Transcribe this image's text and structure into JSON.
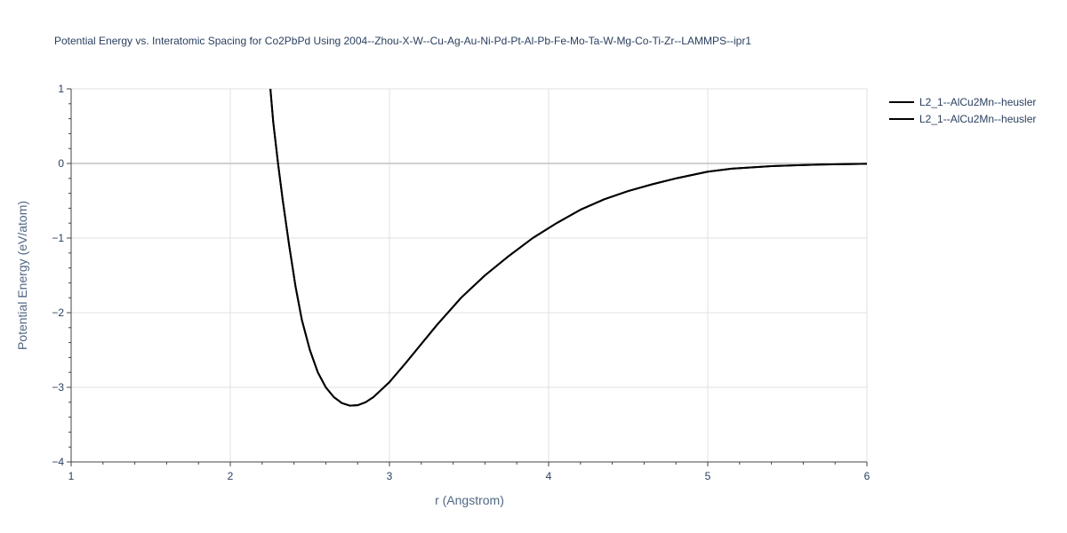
{
  "chart_data": {
    "type": "line",
    "title": "Potential Energy vs. Interatomic Spacing for Co2PbPd Using 2004--Zhou-X-W--Cu-Ag-Au-Ni-Pd-Pt-Al-Pb-Fe-Mo-Ta-W-Mg-Co-Ti-Zr--LAMMPS--ipr1",
    "xlabel": "r (Angstrom)",
    "ylabel": "Potential Energy (eV/atom)",
    "xlim": [
      1,
      6
    ],
    "ylim": [
      -4,
      1
    ],
    "x_ticks": [
      1,
      2,
      3,
      4,
      5,
      6
    ],
    "x_tick_labels": [
      "1",
      "2",
      "3",
      "4",
      "5",
      "6"
    ],
    "y_ticks": [
      1,
      0,
      -1,
      -2,
      -3,
      -4
    ],
    "y_tick_labels": [
      "1",
      "0",
      "−1",
      "−2",
      "−3",
      "−4"
    ],
    "grid": true,
    "legend_position": "top-right",
    "series": [
      {
        "name": "L2_1--AlCu2Mn--heusler",
        "color": "#000000",
        "x": [
          2.25,
          2.27,
          2.3,
          2.33,
          2.37,
          2.41,
          2.45,
          2.5,
          2.55,
          2.6,
          2.65,
          2.7,
          2.75,
          2.8,
          2.85,
          2.9,
          3.0,
          3.1,
          3.2,
          3.3,
          3.45,
          3.6,
          3.75,
          3.9,
          4.05,
          4.2,
          4.35,
          4.5,
          4.65,
          4.8,
          5.0,
          5.15,
          5.4,
          5.7,
          6.0
        ],
        "y": [
          1.05,
          0.55,
          0.0,
          -0.5,
          -1.1,
          -1.65,
          -2.1,
          -2.5,
          -2.8,
          -3.0,
          -3.13,
          -3.21,
          -3.245,
          -3.24,
          -3.2,
          -3.13,
          -2.93,
          -2.68,
          -2.42,
          -2.16,
          -1.8,
          -1.5,
          -1.24,
          -1.0,
          -0.8,
          -0.62,
          -0.48,
          -0.37,
          -0.28,
          -0.2,
          -0.11,
          -0.07,
          -0.035,
          -0.015,
          -0.005
        ]
      },
      {
        "name": "L2_1--AlCu2Mn--heusler",
        "color": "#000000",
        "x": [
          2.25,
          2.27,
          2.3,
          2.33,
          2.37,
          2.41,
          2.45,
          2.5,
          2.55,
          2.6,
          2.65,
          2.7,
          2.75,
          2.8,
          2.85,
          2.9,
          3.0,
          3.1,
          3.2,
          3.3,
          3.45,
          3.6,
          3.75,
          3.9,
          4.05,
          4.2,
          4.35,
          4.5,
          4.65,
          4.8,
          5.0,
          5.15,
          5.4,
          5.7,
          6.0
        ],
        "y": [
          1.05,
          0.55,
          0.0,
          -0.5,
          -1.1,
          -1.65,
          -2.1,
          -2.5,
          -2.8,
          -3.0,
          -3.13,
          -3.21,
          -3.245,
          -3.24,
          -3.2,
          -3.13,
          -2.93,
          -2.68,
          -2.42,
          -2.16,
          -1.8,
          -1.5,
          -1.24,
          -1.0,
          -0.8,
          -0.62,
          -0.48,
          -0.37,
          -0.28,
          -0.2,
          -0.11,
          -0.07,
          -0.035,
          -0.015,
          -0.005
        ]
      }
    ]
  }
}
